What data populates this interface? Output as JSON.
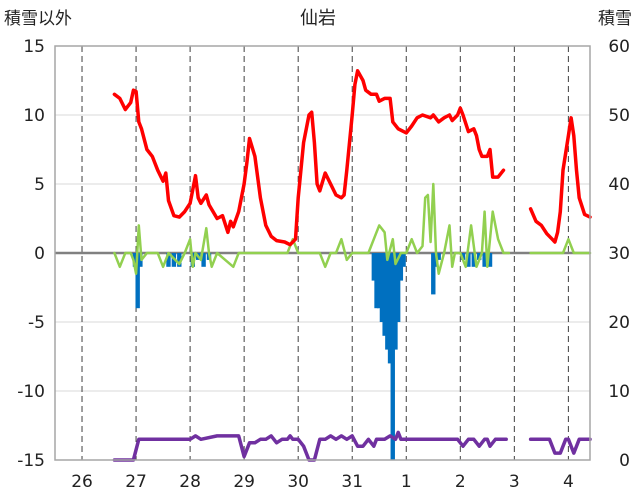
{
  "chart_data": {
    "type": "line",
    "title": "仙岩",
    "left_axis_label": "積雪以外",
    "right_axis_label": "積雪",
    "ylim_left": [
      -15,
      15
    ],
    "ylim_right": [
      0,
      60
    ],
    "yticks_left": [
      "15",
      "10",
      "5",
      "0",
      "-5",
      "-10",
      "-15"
    ],
    "yticks_right": [
      "60",
      "50",
      "40",
      "30",
      "20",
      "10",
      "0"
    ],
    "x_range": [
      -0.5,
      9.4
    ],
    "xticks": [
      {
        "x": 0,
        "label": "26"
      },
      {
        "x": 1,
        "label": "27"
      },
      {
        "x": 2,
        "label": "28"
      },
      {
        "x": 3,
        "label": "29"
      },
      {
        "x": 4,
        "label": "30"
      },
      {
        "x": 5,
        "label": "31"
      },
      {
        "x": 6,
        "label": "1"
      },
      {
        "x": 7,
        "label": "2"
      },
      {
        "x": 8,
        "label": "3"
      },
      {
        "x": 9,
        "label": "4"
      }
    ],
    "colors": {
      "temperature": "#ff0000",
      "wind": "#92d050",
      "precip": "#0070c0",
      "snow": "#7030a0"
    },
    "series": [
      {
        "axis": "left",
        "style": "line",
        "segments": [
          [
            [
              0.6,
              11.5
            ],
            [
              0.7,
              11.2
            ],
            [
              0.8,
              10.4
            ],
            [
              0.9,
              10.9
            ],
            [
              0.95,
              11.8
            ],
            [
              1.0,
              11.7
            ],
            [
              1.05,
              9.5
            ],
            [
              1.1,
              9.0
            ],
            [
              1.2,
              7.5
            ],
            [
              1.3,
              7.0
            ],
            [
              1.4,
              6.0
            ],
            [
              1.5,
              5.2
            ],
            [
              1.55,
              5.8
            ],
            [
              1.6,
              3.8
            ],
            [
              1.7,
              2.7
            ],
            [
              1.8,
              2.6
            ],
            [
              1.9,
              3.0
            ],
            [
              2.0,
              3.6
            ],
            [
              2.1,
              5.6
            ],
            [
              2.15,
              4.0
            ],
            [
              2.2,
              3.6
            ],
            [
              2.3,
              4.2
            ],
            [
              2.35,
              3.5
            ],
            [
              2.5,
              2.5
            ],
            [
              2.6,
              2.7
            ],
            [
              2.7,
              1.5
            ],
            [
              2.75,
              2.3
            ],
            [
              2.8,
              1.9
            ],
            [
              2.9,
              3.0
            ],
            [
              3.0,
              5.0
            ],
            [
              3.05,
              6.5
            ],
            [
              3.1,
              8.3
            ],
            [
              3.2,
              7.0
            ],
            [
              3.3,
              4.0
            ],
            [
              3.4,
              2.0
            ],
            [
              3.5,
              1.2
            ],
            [
              3.6,
              0.9
            ],
            [
              3.75,
              0.8
            ],
            [
              3.85,
              0.6
            ],
            [
              3.95,
              1.0
            ],
            [
              4.0,
              4.0
            ],
            [
              4.05,
              6.0
            ],
            [
              4.1,
              8.0
            ],
            [
              4.2,
              10.0
            ],
            [
              4.25,
              10.2
            ],
            [
              4.3,
              8.0
            ],
            [
              4.35,
              5.0
            ],
            [
              4.4,
              4.5
            ],
            [
              4.5,
              5.8
            ],
            [
              4.6,
              5.0
            ],
            [
              4.7,
              4.2
            ],
            [
              4.8,
              4.0
            ],
            [
              4.85,
              4.2
            ],
            [
              4.9,
              6.0
            ],
            [
              5.0,
              10.0
            ],
            [
              5.05,
              12.2
            ],
            [
              5.1,
              13.2
            ],
            [
              5.2,
              12.5
            ],
            [
              5.25,
              11.8
            ],
            [
              5.35,
              11.5
            ],
            [
              5.45,
              11.5
            ],
            [
              5.5,
              11.0
            ],
            [
              5.6,
              11.2
            ],
            [
              5.7,
              11.2
            ],
            [
              5.75,
              9.5
            ],
            [
              5.85,
              9.0
            ],
            [
              5.95,
              8.8
            ],
            [
              6.0,
              8.7
            ],
            [
              6.1,
              9.2
            ],
            [
              6.2,
              9.8
            ],
            [
              6.3,
              10.0
            ],
            [
              6.45,
              9.8
            ],
            [
              6.5,
              10.0
            ],
            [
              6.6,
              9.5
            ],
            [
              6.7,
              9.8
            ],
            [
              6.8,
              10.0
            ],
            [
              6.85,
              9.6
            ],
            [
              6.95,
              10.0
            ],
            [
              7.0,
              10.5
            ],
            [
              7.05,
              10.0
            ],
            [
              7.15,
              8.8
            ],
            [
              7.25,
              9.0
            ],
            [
              7.3,
              8.5
            ],
            [
              7.35,
              7.5
            ],
            [
              7.4,
              7.0
            ],
            [
              7.5,
              7.0
            ],
            [
              7.55,
              7.5
            ],
            [
              7.6,
              5.5
            ],
            [
              7.7,
              5.5
            ],
            [
              7.8,
              6.0
            ]
          ],
          [
            [
              8.3,
              3.2
            ],
            [
              8.4,
              2.3
            ],
            [
              8.5,
              2.0
            ],
            [
              8.6,
              1.4
            ],
            [
              8.7,
              1.0
            ],
            [
              8.75,
              0.8
            ],
            [
              8.8,
              1.5
            ],
            [
              8.85,
              3.0
            ],
            [
              8.9,
              6.0
            ],
            [
              9.0,
              8.5
            ],
            [
              9.05,
              9.8
            ],
            [
              9.1,
              8.5
            ],
            [
              9.15,
              6.0
            ],
            [
              9.2,
              4.0
            ],
            [
              9.3,
              2.8
            ],
            [
              9.4,
              2.6
            ]
          ]
        ]
      },
      {
        "axis": "left",
        "style": "line",
        "segments": [
          [
            [
              0.6,
              0
            ],
            [
              0.7,
              -1.0
            ],
            [
              0.8,
              0
            ],
            [
              0.9,
              0
            ],
            [
              0.95,
              -0.5
            ],
            [
              1.0,
              -1.5
            ],
            [
              1.05,
              2.0
            ],
            [
              1.1,
              -0.5
            ],
            [
              1.2,
              0
            ],
            [
              1.4,
              0
            ],
            [
              1.5,
              -1.0
            ],
            [
              1.6,
              0
            ],
            [
              1.8,
              -0.8
            ],
            [
              1.9,
              0
            ],
            [
              2.0,
              1.0
            ],
            [
              2.05,
              -1.0
            ],
            [
              2.1,
              0
            ],
            [
              2.2,
              -0.5
            ],
            [
              2.3,
              1.8
            ],
            [
              2.35,
              0
            ],
            [
              2.4,
              -1.0
            ],
            [
              2.5,
              0
            ],
            [
              2.8,
              -1.0
            ],
            [
              2.9,
              0
            ],
            [
              3.6,
              0
            ],
            [
              3.8,
              0
            ],
            [
              3.9,
              1.0
            ],
            [
              4.0,
              0
            ],
            [
              4.4,
              0
            ],
            [
              4.5,
              -1.0
            ],
            [
              4.6,
              0
            ],
            [
              4.7,
              0
            ],
            [
              4.8,
              1.0
            ],
            [
              4.9,
              -0.5
            ],
            [
              5.0,
              0
            ],
            [
              5.3,
              0
            ],
            [
              5.4,
              1.0
            ],
            [
              5.5,
              2.0
            ],
            [
              5.6,
              1.5
            ],
            [
              5.65,
              -0.5
            ],
            [
              5.75,
              1.0
            ],
            [
              5.8,
              -0.8
            ],
            [
              5.9,
              0
            ],
            [
              6.0,
              0
            ],
            [
              6.1,
              1.0
            ],
            [
              6.2,
              0
            ],
            [
              6.3,
              0.5
            ],
            [
              6.35,
              4.0
            ],
            [
              6.4,
              4.2
            ],
            [
              6.45,
              0.8
            ],
            [
              6.5,
              5.0
            ],
            [
              6.55,
              0
            ],
            [
              6.6,
              -1.5
            ],
            [
              6.7,
              0
            ],
            [
              6.8,
              2.0
            ],
            [
              6.85,
              -1.0
            ],
            [
              6.9,
              0
            ],
            [
              7.0,
              0
            ],
            [
              7.1,
              -1.0
            ],
            [
              7.2,
              2.0
            ],
            [
              7.3,
              -1.0
            ],
            [
              7.4,
              0
            ],
            [
              7.45,
              3.0
            ],
            [
              7.5,
              -1.0
            ],
            [
              7.6,
              3.0
            ],
            [
              7.7,
              1.0
            ],
            [
              7.8,
              0
            ],
            [
              7.9,
              0
            ]
          ],
          [
            [
              8.3,
              0
            ],
            [
              8.9,
              0
            ],
            [
              9.0,
              1.0
            ],
            [
              9.1,
              0
            ],
            [
              9.4,
              0
            ]
          ]
        ]
      },
      {
        "axis": "left",
        "style": "bar",
        "bars": [
          [
            0.98,
            -1.0
          ],
          [
            1.03,
            -4.0
          ],
          [
            1.08,
            -1.0
          ],
          [
            1.6,
            -1.0
          ],
          [
            1.7,
            -1.0
          ],
          [
            1.8,
            -1.0
          ],
          [
            2.05,
            -1.0
          ],
          [
            2.15,
            -0.5
          ],
          [
            2.25,
            -1.0
          ],
          [
            2.35,
            -0.5
          ],
          [
            5.4,
            -2.0
          ],
          [
            5.45,
            -4.0
          ],
          [
            5.5,
            -4.0
          ],
          [
            5.55,
            -5.0
          ],
          [
            5.6,
            -6.0
          ],
          [
            5.65,
            -7.0
          ],
          [
            5.7,
            -8.0
          ],
          [
            5.75,
            -15.0
          ],
          [
            5.8,
            -7.0
          ],
          [
            5.85,
            -5.0
          ],
          [
            5.9,
            -2.0
          ],
          [
            5.95,
            -1.0
          ],
          [
            6.5,
            -3.0
          ],
          [
            6.55,
            -1.0
          ],
          [
            6.6,
            -0.5
          ],
          [
            7.05,
            -0.5
          ],
          [
            7.15,
            -1.0
          ],
          [
            7.25,
            -1.0
          ],
          [
            7.35,
            -0.5
          ],
          [
            7.45,
            -1.0
          ],
          [
            7.55,
            -1.0
          ]
        ]
      },
      {
        "axis": "right",
        "style": "line",
        "segments": [
          [
            [
              0.6,
              0
            ],
            [
              0.95,
              0
            ],
            [
              1.05,
              3
            ],
            [
              2.0,
              3
            ],
            [
              2.1,
              3.5
            ],
            [
              2.2,
              3
            ],
            [
              2.5,
              3.5
            ],
            [
              2.6,
              3.5
            ],
            [
              2.7,
              3.5
            ],
            [
              2.8,
              3.5
            ],
            [
              2.9,
              3.5
            ],
            [
              3.0,
              0.5
            ],
            [
              3.1,
              2.5
            ],
            [
              3.2,
              2.5
            ],
            [
              3.3,
              3
            ],
            [
              3.4,
              3
            ],
            [
              3.5,
              3.5
            ],
            [
              3.6,
              2.5
            ],
            [
              3.7,
              3
            ],
            [
              3.8,
              3
            ],
            [
              3.85,
              3.5
            ],
            [
              3.9,
              3
            ],
            [
              4.0,
              3
            ],
            [
              4.1,
              2
            ],
            [
              4.2,
              0
            ],
            [
              4.3,
              0
            ],
            [
              4.4,
              3
            ],
            [
              4.5,
              3
            ],
            [
              4.6,
              3.5
            ],
            [
              4.7,
              3
            ],
            [
              4.8,
              3.5
            ],
            [
              4.9,
              3
            ],
            [
              5.0,
              3.5
            ],
            [
              5.1,
              2
            ],
            [
              5.2,
              2
            ],
            [
              5.3,
              3
            ],
            [
              5.4,
              2
            ],
            [
              5.45,
              3
            ],
            [
              5.6,
              3
            ],
            [
              5.7,
              3.5
            ],
            [
              5.8,
              3
            ],
            [
              5.85,
              4
            ],
            [
              5.9,
              3
            ],
            [
              6.0,
              3
            ],
            [
              6.95,
              3
            ],
            [
              7.05,
              2
            ],
            [
              7.15,
              3
            ],
            [
              7.25,
              3
            ],
            [
              7.35,
              2
            ],
            [
              7.45,
              3
            ],
            [
              7.5,
              3
            ],
            [
              7.55,
              2
            ],
            [
              7.65,
              3
            ],
            [
              7.85,
              3
            ]
          ],
          [
            [
              8.3,
              3
            ],
            [
              8.65,
              3
            ],
            [
              8.75,
              1
            ],
            [
              8.85,
              1
            ],
            [
              8.95,
              3
            ],
            [
              9.0,
              3
            ],
            [
              9.1,
              1
            ],
            [
              9.2,
              3
            ],
            [
              9.4,
              3
            ]
          ]
        ]
      }
    ]
  }
}
